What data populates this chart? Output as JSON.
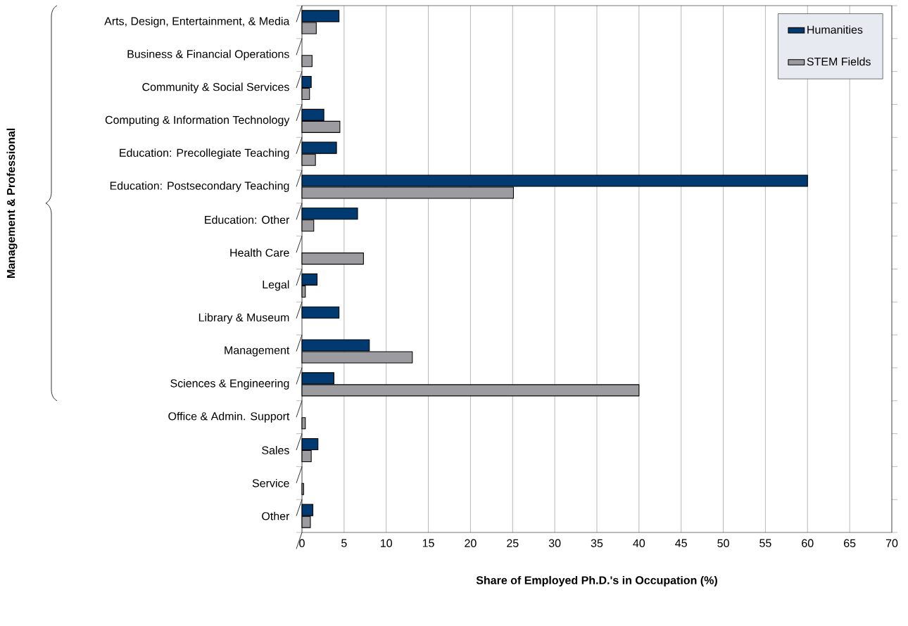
{
  "chart_data": {
    "type": "bar",
    "orientation": "horizontal",
    "xlabel": "Share of Employed Ph.D.'s in Occupation (%)",
    "categories": [
      "Arts, Design, Entertainment, & Media",
      "Business & Financial Operations",
      "Community & Social Services",
      "Computing & Information Technology",
      "Education: Precollegiate Teaching",
      "Education: Postsecondary Teaching",
      "Education: Other",
      "Health Care",
      "Legal",
      "Library & Museum",
      "Management",
      "Sciences & Engineering",
      "Office & Admin. Support",
      "Sales",
      "Service",
      "Other"
    ],
    "series": [
      {
        "name": "Humanities",
        "color": "#003a70",
        "values": [
          4.4,
          0,
          1.1,
          2.6,
          4.1,
          60,
          6.6,
          0,
          1.8,
          4.4,
          8.0,
          3.8,
          0,
          1.9,
          0,
          1.3
        ]
      },
      {
        "name": "STEM Fields",
        "color": "#9c9ca0",
        "values": [
          1.7,
          1.2,
          0.9,
          4.5,
          1.6,
          25.1,
          1.4,
          7.3,
          0.4,
          0,
          13.1,
          40,
          0.4,
          1.1,
          0.2,
          1.0
        ]
      }
    ],
    "xlim": [
      0,
      70
    ],
    "xticks": [
      0,
      5,
      10,
      15,
      20,
      25,
      30,
      35,
      40,
      45,
      50,
      55,
      60,
      65,
      70
    ],
    "grid": "x",
    "legend": "top right",
    "annotations": [
      "Management & Professional"
    ]
  }
}
